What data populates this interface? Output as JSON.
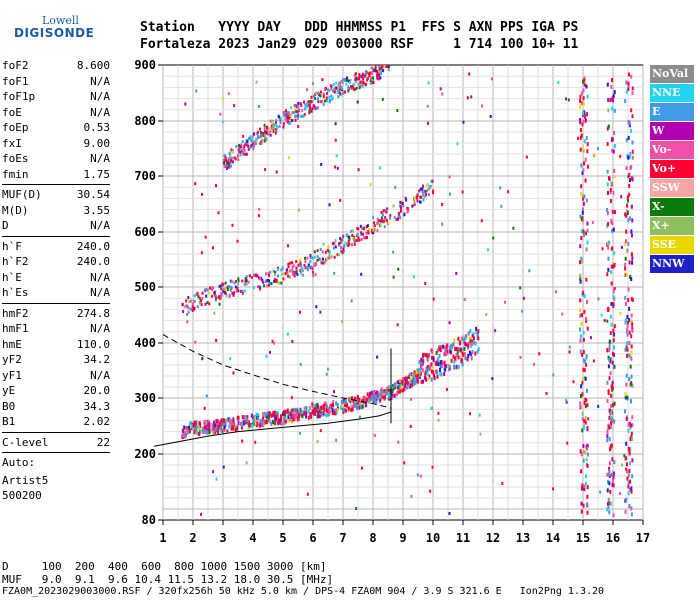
{
  "logo": {
    "brand": "Lowell",
    "name": "DIGISONDE"
  },
  "header": {
    "line1": "Station   YYYY DAY   DDD HHMMSS P1  FFS S AXN PPS IGA PS",
    "line2": "Fortaleza 2023 Jan29 029 003000 RSF     1 714 100 10+ 11"
  },
  "params": {
    "groups": [
      [
        {
          "name": "foF2",
          "value": "8.600"
        },
        {
          "name": "foF1",
          "value": "N/A"
        },
        {
          "name": "foF1p",
          "value": "N/A"
        },
        {
          "name": "foE",
          "value": "N/A"
        },
        {
          "name": "foEp",
          "value": "0.53"
        },
        {
          "name": "fxI",
          "value": "9.00"
        },
        {
          "name": "foEs",
          "value": "N/A"
        },
        {
          "name": "fmin",
          "value": "1.75"
        }
      ],
      [
        {
          "name": "MUF(D)",
          "value": "30.54"
        },
        {
          "name": "M(D)",
          "value": "3.55"
        },
        {
          "name": "D",
          "value": "N/A"
        }
      ],
      [
        {
          "name": "h`F",
          "value": "240.0"
        },
        {
          "name": "h`F2",
          "value": "240.0"
        },
        {
          "name": "h`E",
          "value": "N/A"
        },
        {
          "name": "h`Es",
          "value": "N/A"
        }
      ],
      [
        {
          "name": "hmF2",
          "value": "274.8"
        },
        {
          "name": "hmF1",
          "value": "N/A"
        },
        {
          "name": "hmE",
          "value": "110.0"
        },
        {
          "name": "yF2",
          "value": "34.2"
        },
        {
          "name": "yF1",
          "value": "N/A"
        },
        {
          "name": "yE",
          "value": "20.0"
        },
        {
          "name": "B0",
          "value": "34.3"
        },
        {
          "name": "B1",
          "value": "2.02"
        }
      ],
      [
        {
          "name": "C-level",
          "value": "22"
        }
      ]
    ],
    "auto_lines": [
      "Auto:",
      "Artist5",
      "500200"
    ]
  },
  "legend": [
    {
      "label": "NoVal",
      "color": "#8c8c8c"
    },
    {
      "label": "NNE",
      "color": "#22d3ef"
    },
    {
      "label": "E",
      "color": "#3f9ae8"
    },
    {
      "label": "W",
      "color": "#b000b0"
    },
    {
      "label": "Vo-",
      "color": "#f050a8"
    },
    {
      "label": "Vo+",
      "color": "#ff0033"
    },
    {
      "label": "SSW",
      "color": "#f5a5a5"
    },
    {
      "label": "X-",
      "color": "#0a7a0a"
    },
    {
      "label": "X+",
      "color": "#8fc060"
    },
    {
      "label": "SSE",
      "color": "#e6d800"
    },
    {
      "label": "NNW",
      "color": "#2020c8"
    }
  ],
  "bottom": {
    "line1": "D     100  200  400  600  800 1000 1500 3000 [km]",
    "line2": "MUF   9.0  9.1  9.6 10.4 11.5 13.2 18.0 30.5 [MHz]",
    "line3": "FZA0M_2023029003000.RSF / 320fx256h 50 kHz 5.0 km / DPS-4 FZA0M 904 / 3.9 S 321.6 E   Ion2Png 1.3.20"
  },
  "chart_data": {
    "type": "scatter",
    "title": "",
    "xlabel": "",
    "ylabel": "",
    "x_ticks": [
      1,
      2,
      3,
      4,
      5,
      6,
      7,
      8,
      9,
      10,
      11,
      12,
      13,
      14,
      15,
      16,
      17
    ],
    "y_ticks": [
      80,
      200,
      300,
      400,
      500,
      600,
      700,
      800,
      900
    ],
    "xlim": [
      1,
      17
    ],
    "ylim_ticks_nonlinear": true,
    "traces": [
      {
        "name": "F-layer trace (first hop)",
        "x": [
          1.6,
          2.0,
          3.0,
          4.0,
          5.0,
          6.0,
          7.0,
          8.0,
          8.6,
          9.0,
          10.0,
          11.0,
          11.5
        ],
        "y": [
          240,
          245,
          250,
          258,
          265,
          275,
          285,
          300,
          310,
          325,
          355,
          380,
          400
        ]
      },
      {
        "name": "second hop",
        "x": [
          1.6,
          2.0,
          3.0,
          4.0,
          5.0,
          6.0,
          7.0,
          8.0,
          9.0,
          10.0
        ],
        "y": [
          460,
          470,
          490,
          505,
          520,
          545,
          575,
          610,
          640,
          680
        ]
      },
      {
        "name": "third hop",
        "x": [
          3.0,
          4.0,
          5.0,
          6.0,
          7.0,
          8.0,
          8.5
        ],
        "y": [
          720,
          760,
          800,
          830,
          860,
          880,
          900
        ]
      }
    ],
    "profile_solid": {
      "x": [
        0.7,
        1.5,
        2.5,
        3.5,
        4.5,
        5.5,
        6.5,
        7.5,
        8.2,
        8.6
      ],
      "y": [
        214,
        222,
        232,
        240,
        245,
        250,
        255,
        262,
        268,
        275
      ]
    },
    "profile_dashed": {
      "x": [
        1.0,
        2.0,
        3.0,
        4.0,
        5.0,
        6.0,
        7.0,
        8.0,
        8.6
      ],
      "y": [
        415,
        385,
        360,
        342,
        325,
        312,
        300,
        290,
        282
      ]
    },
    "vertical_bars_x": [
      15.0,
      15.9,
      16.5
    ],
    "grid": true,
    "legend_position": "right"
  }
}
